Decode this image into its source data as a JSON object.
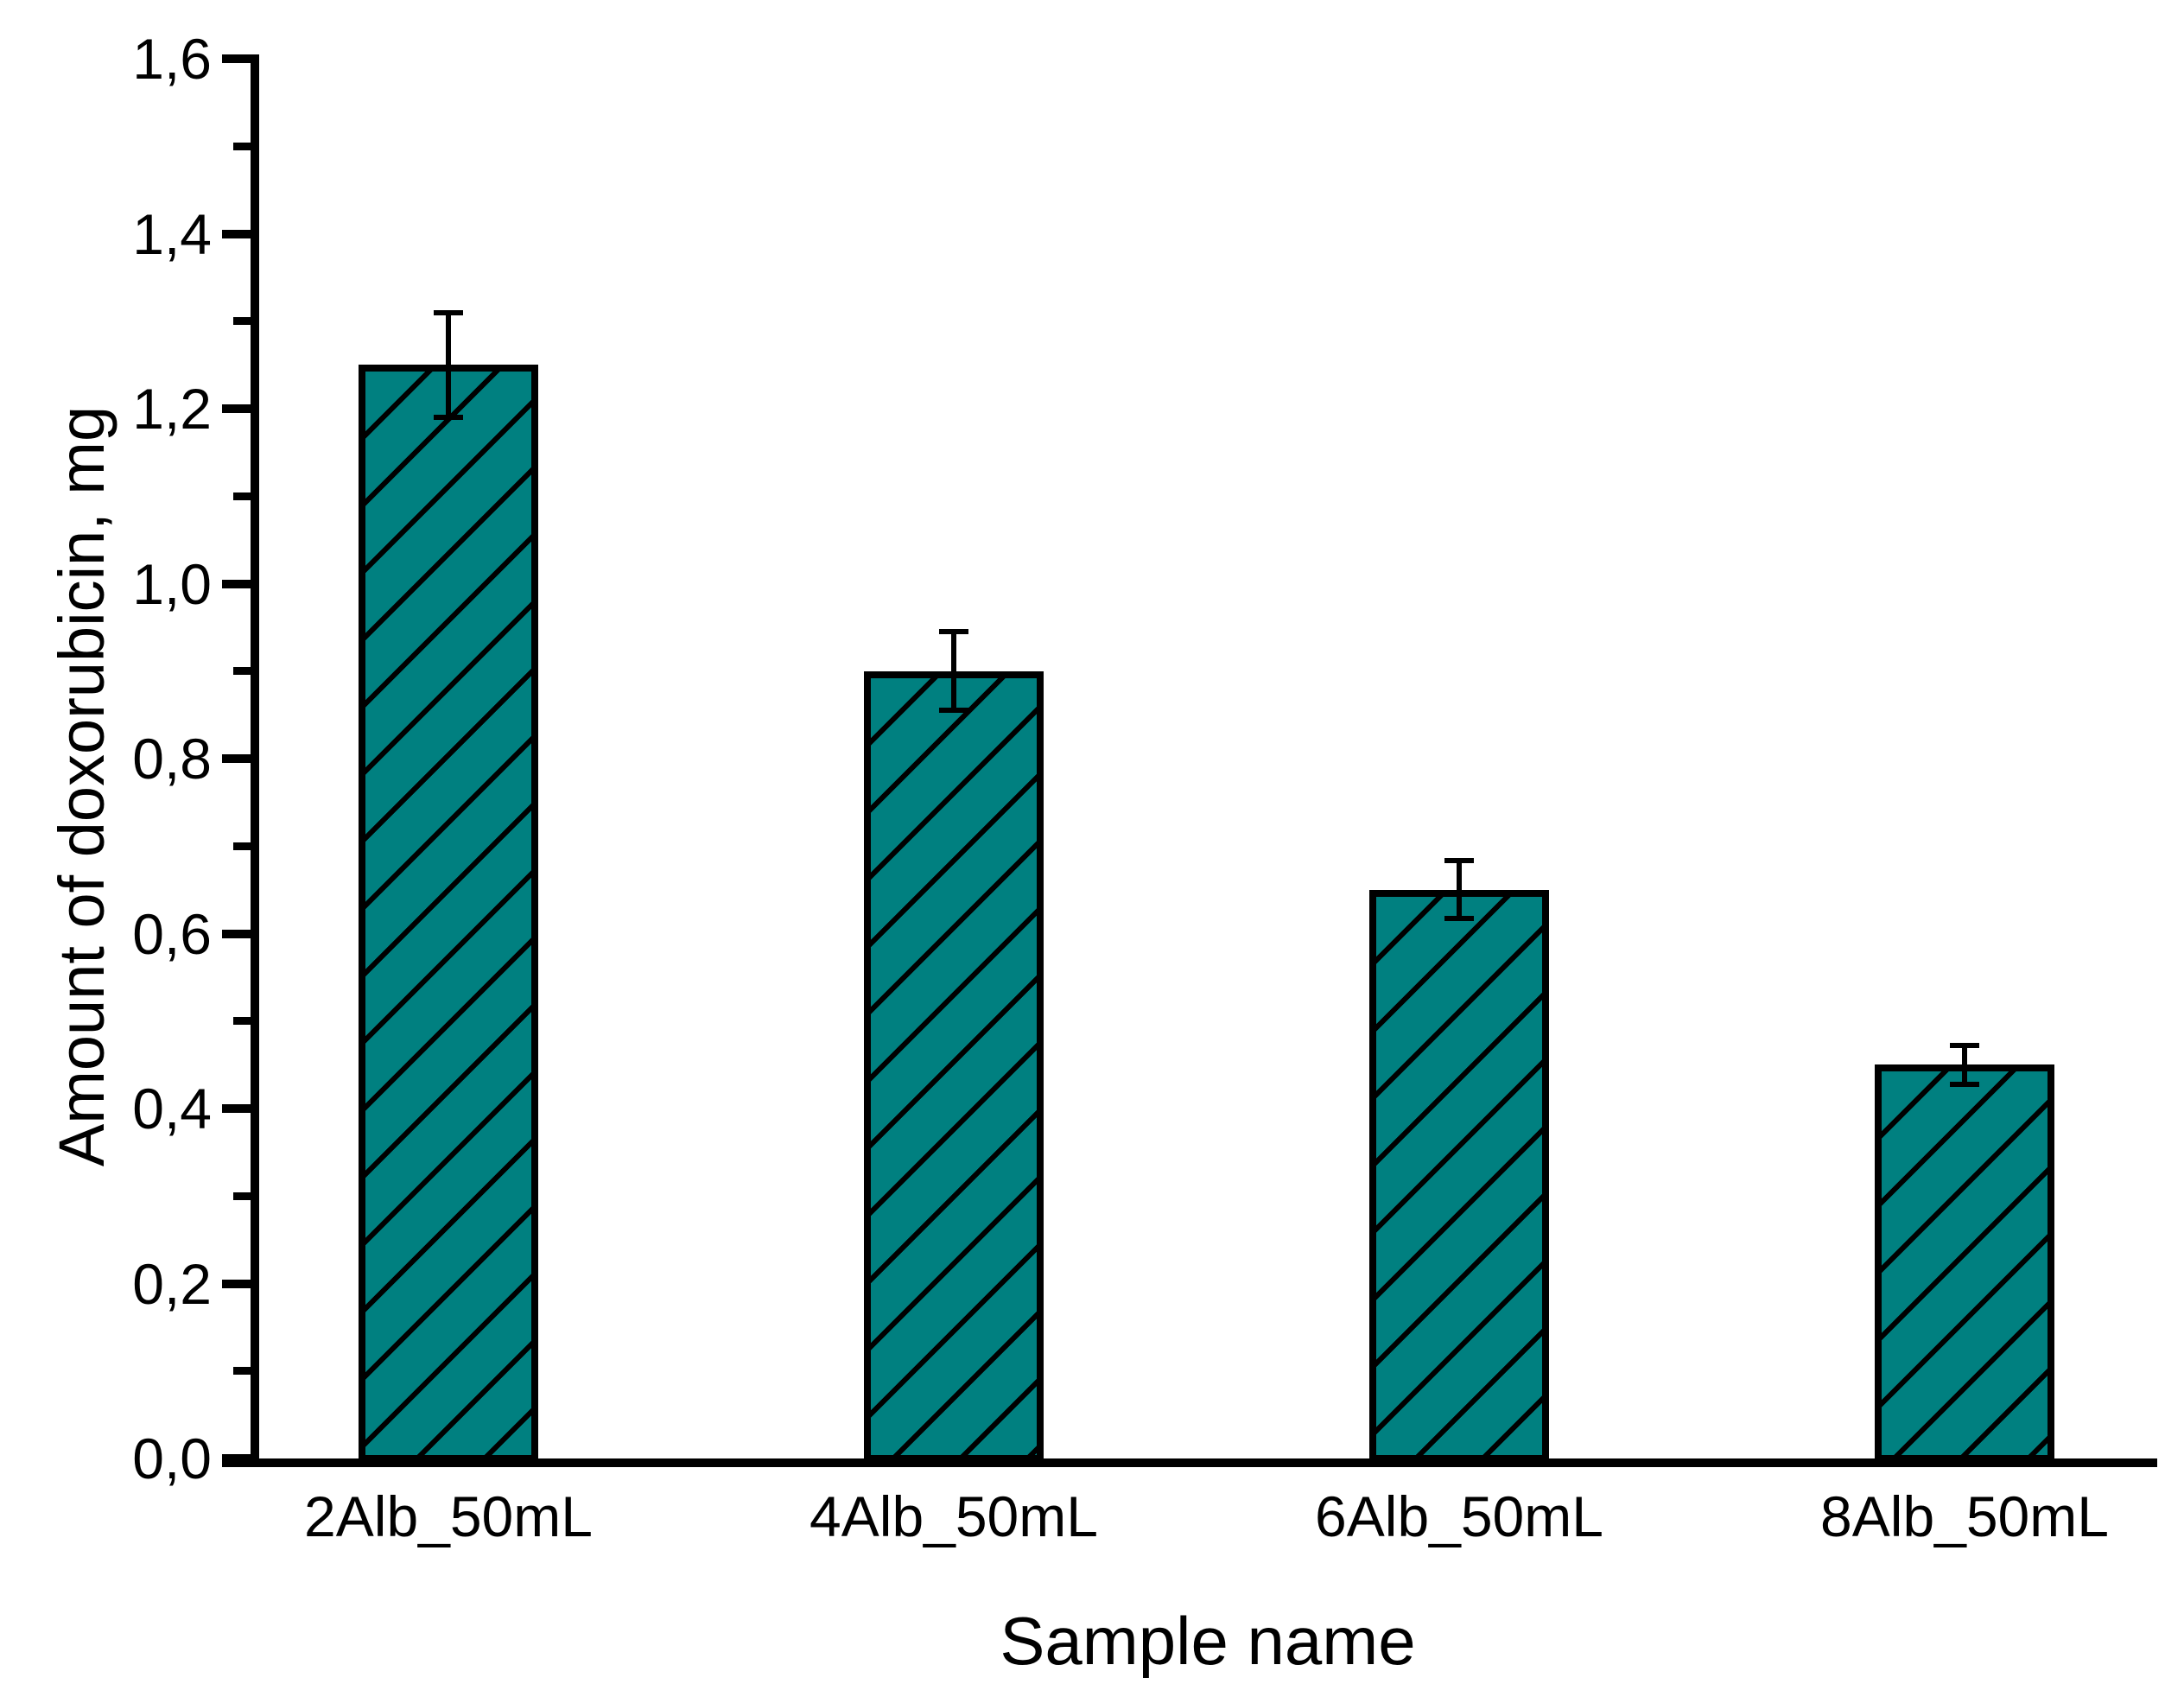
{
  "chart_data": {
    "type": "bar",
    "title": "",
    "xlabel": "Sample name",
    "ylabel": "Amount of doxorubicin, mg",
    "categories": [
      "2Alb_50mL",
      "4Alb_50mL",
      "6Alb_50mL",
      "8Alb_50mL"
    ],
    "values": [
      1.25,
      0.9,
      0.65,
      0.45
    ],
    "errors": [
      0.06,
      0.045,
      0.033,
      0.022
    ],
    "ylim": [
      0,
      1.6
    ],
    "ytick_step": 0.2,
    "yminor_step": 0.1,
    "ytick_labels": [
      "0,0",
      "0,2",
      "0,4",
      "0,6",
      "0,8",
      "1,0",
      "1,2",
      "1,4",
      "1,6"
    ],
    "decimal_separator": ",",
    "bar_color": "#008080",
    "hatch_color": "#000000",
    "hatch_style": "forward-diagonal",
    "axis_color": "#000000",
    "grid": false,
    "legend": false,
    "error_bar_caps": true
  }
}
